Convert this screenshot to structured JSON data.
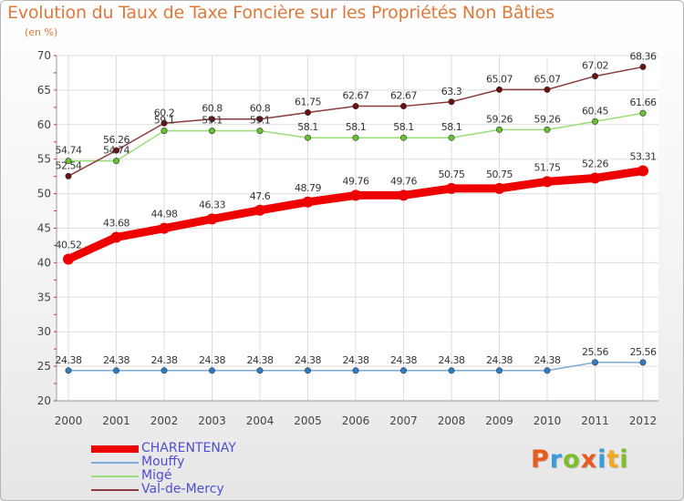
{
  "header": {
    "title": "Evolution du Taux de Taxe Foncière sur les Propriétés Non Bâties",
    "unit": "(en %)"
  },
  "chart_data": {
    "type": "line",
    "title": "Evolution du Taux de Taxe Foncière sur les Propriétés Non Bâties",
    "ylabel": "(en %)",
    "xlabel": "",
    "x": [
      "2000",
      "2001",
      "2002",
      "2003",
      "2004",
      "2005",
      "2006",
      "2007",
      "2008",
      "2009",
      "2010",
      "2011",
      "2012"
    ],
    "ylim": [
      20,
      70
    ],
    "yticks": [
      "20",
      "25",
      "30",
      "35",
      "40",
      "45",
      "50",
      "55",
      "60",
      "65",
      "70"
    ],
    "grid": true,
    "legend_position": "bottom-left",
    "series": [
      {
        "name": "CHARENTENAY",
        "color": "#ee0000",
        "marker": "#ee0000",
        "thick": true,
        "values": [
          40.52,
          43.68,
          44.98,
          46.33,
          47.6,
          48.79,
          49.76,
          49.76,
          50.75,
          50.75,
          51.75,
          52.26,
          53.31
        ],
        "labels": [
          "40.52",
          "43.68",
          "44.98",
          "46.33",
          "47.6",
          "48.79",
          "49.76",
          "49.76",
          "50.75",
          "50.75",
          "51.75",
          "52.26",
          "53.31"
        ]
      },
      {
        "name": "Mouffy",
        "color": "#7aaad6",
        "marker": "#2d7ec4",
        "thick": false,
        "values": [
          24.38,
          24.38,
          24.38,
          24.38,
          24.38,
          24.38,
          24.38,
          24.38,
          24.38,
          24.38,
          24.38,
          25.56,
          25.56
        ],
        "labels": [
          "24.38",
          "24.38",
          "24.38",
          "24.38",
          "24.38",
          "24.38",
          "24.38",
          "24.38",
          "24.38",
          "24.38",
          "24.38",
          "25.56",
          "25.56"
        ]
      },
      {
        "name": "Migé",
        "color": "#99dd77",
        "marker": "#66c233",
        "thick": false,
        "values": [
          54.74,
          54.74,
          59.1,
          59.1,
          59.1,
          58.1,
          58.1,
          58.1,
          58.1,
          59.26,
          59.26,
          60.45,
          61.66
        ],
        "labels": [
          "54.74",
          "54.74",
          "59.1",
          "59.1",
          "59.1",
          "58.1",
          "58.1",
          "58.1",
          "58.1",
          "59.26",
          "59.26",
          "60.45",
          "61.66"
        ]
      },
      {
        "name": "Val-de-Mercy",
        "color": "#8a3a3a",
        "marker": "#6a1010",
        "thick": false,
        "values": [
          52.54,
          56.26,
          60.2,
          60.8,
          60.8,
          61.75,
          62.67,
          62.67,
          63.3,
          65.07,
          65.07,
          67.02,
          68.36
        ],
        "labels": [
          "52.54",
          "56.26",
          "60.2",
          "60.8",
          "60.8",
          "61.75",
          "62.67",
          "62.67",
          "63.3",
          "65.07",
          "65.07",
          "67.02",
          "68.36"
        ]
      }
    ]
  },
  "logo": {
    "letters": [
      "P",
      "r",
      "o",
      "x",
      "i",
      "t",
      "i"
    ],
    "colors": [
      "#e85a1e",
      "#3b9ad8",
      "#7cbf2a",
      "#e85a1e",
      "#3b9ad8",
      "#f2a91d",
      "#7cbf2a"
    ]
  }
}
